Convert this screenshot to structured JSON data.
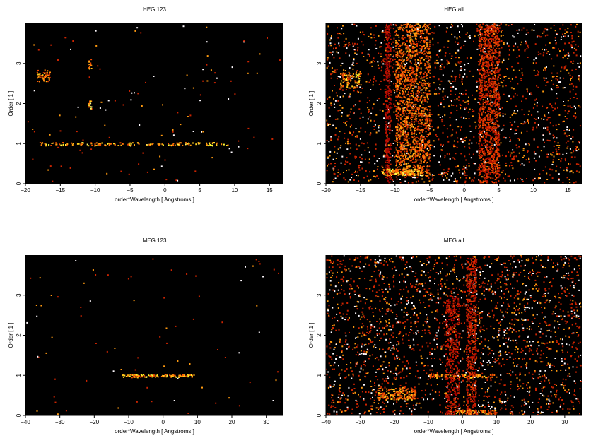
{
  "chart_data": [
    {
      "type": "heatmap",
      "title": "HEG 123",
      "xlabel": "order*Wavelength [ Angstroms ]",
      "ylabel": "Order [ 1 ]",
      "xlim": [
        -20,
        17
      ],
      "ylim": [
        0,
        4
      ],
      "xticks": [
        -20,
        -15,
        -10,
        -5,
        0,
        5,
        10,
        15
      ],
      "yticks": [
        0,
        1,
        2,
        3
      ],
      "colormap": "black-red-yellow-white (heat)",
      "background": "#000000",
      "features": [
        {
          "x_range": [
            -18,
            9
          ],
          "y": 1.0,
          "spread": 0.04,
          "density": 0.35,
          "weight": 0.9
        },
        {
          "x_range": [
            -11,
            -10.6
          ],
          "y": 2.0,
          "spread": 0.12,
          "density": 0.9,
          "weight": 0.95
        },
        {
          "x_range": [
            -11,
            -10.6
          ],
          "y": 3.0,
          "spread": 0.12,
          "density": 0.8,
          "weight": 0.9
        },
        {
          "x_range": [
            -18.5,
            -16.5
          ],
          "y": 2.7,
          "spread": 0.15,
          "density": 0.5,
          "weight": 0.8
        }
      ],
      "noise_density": 0.006
    },
    {
      "type": "heatmap",
      "title": "HEG all",
      "xlabel": "order*Wavelength [ Angstroms ]",
      "ylabel": "Order [ 1 ]",
      "xlim": [
        -20,
        17
      ],
      "ylim": [
        0,
        4
      ],
      "xticks": [
        -20,
        -15,
        -10,
        -5,
        0,
        5,
        10,
        15
      ],
      "yticks": [
        0,
        1,
        2,
        3
      ],
      "colormap": "black-red-yellow-white (heat)",
      "background": "#000000",
      "features": [
        {
          "x_range": [
            -11.5,
            -10.7
          ],
          "y_range": [
            0,
            4
          ],
          "density": 0.8,
          "weight": 0.45
        },
        {
          "x_range": [
            -10,
            -5
          ],
          "y_range": [
            0.2,
            4
          ],
          "density": 0.5,
          "weight": 0.75
        },
        {
          "x_range": [
            2,
            5
          ],
          "y_range": [
            0,
            4
          ],
          "density": 0.7,
          "weight": 0.6
        },
        {
          "x_range": [
            -12,
            -6
          ],
          "y": 0.3,
          "spread": 0.08,
          "density": 0.85,
          "weight": 0.9
        },
        {
          "x_range": [
            -18,
            -15
          ],
          "y": 2.6,
          "spread": 0.2,
          "density": 0.5,
          "weight": 0.85
        }
      ],
      "noise_density": 0.09
    },
    {
      "type": "heatmap",
      "title": "MEG 123",
      "xlabel": "order*Wavelength [ Angstroms ]",
      "ylabel": "Order [ 1 ]",
      "xlim": [
        -40,
        35
      ],
      "ylim": [
        0,
        4
      ],
      "xticks": [
        -40,
        -30,
        -20,
        -10,
        0,
        10,
        20,
        30
      ],
      "yticks": [
        0,
        1,
        2,
        3
      ],
      "colormap": "black-red-yellow-white (heat)",
      "background": "#000000",
      "features": [
        {
          "x_range": [
            -12,
            9
          ],
          "y": 1.0,
          "spread": 0.03,
          "density": 0.4,
          "weight": 0.9
        },
        {
          "x_range": [
            -12,
            -5
          ],
          "y": 1.0,
          "spread": 0.04,
          "density": 0.45,
          "weight": 0.85
        },
        {
          "x_range": [
            0,
            9
          ],
          "y": 1.0,
          "spread": 0.03,
          "density": 0.6,
          "weight": 0.9
        }
      ],
      "noise_density": 0.004
    },
    {
      "type": "heatmap",
      "title": "MEG all",
      "xlabel": "order*Wavelength [ Angstroms ]",
      "ylabel": "Order [ 1 ]",
      "xlim": [
        -40,
        35
      ],
      "ylim": [
        0,
        4
      ],
      "xticks": [
        -40,
        -30,
        -20,
        -10,
        0,
        10,
        20,
        30
      ],
      "yticks": [
        0,
        1,
        2,
        3
      ],
      "colormap": "black-red-yellow-white (heat)",
      "background": "#000000",
      "features": [
        {
          "x_range": [
            -25,
            -14
          ],
          "y": 0.55,
          "spread": 0.15,
          "density": 0.65,
          "weight": 0.8
        },
        {
          "x_range": [
            -10,
            10
          ],
          "y": 1.0,
          "spread": 0.05,
          "density": 0.5,
          "weight": 0.8
        },
        {
          "x_range": [
            1,
            4
          ],
          "y_range": [
            0,
            4
          ],
          "density": 0.65,
          "weight": 0.55
        },
        {
          "x_range": [
            -5,
            -1
          ],
          "y_range": [
            0,
            3
          ],
          "density": 0.5,
          "weight": 0.5
        },
        {
          "x_range": [
            -2,
            10
          ],
          "y": 0.1,
          "spread": 0.05,
          "density": 0.7,
          "weight": 0.8
        }
      ],
      "noise_density": 0.11
    }
  ]
}
